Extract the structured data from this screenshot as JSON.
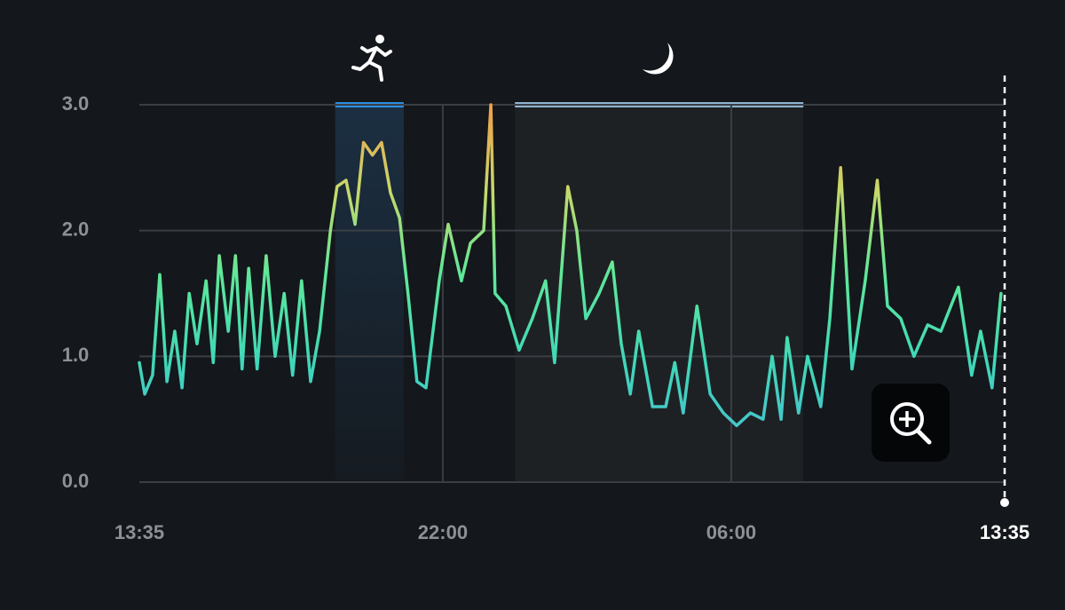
{
  "chart_data": {
    "type": "line",
    "x": [
      0,
      9,
      22,
      34,
      46,
      59,
      71,
      83,
      96,
      111,
      123,
      133,
      148,
      160,
      171,
      182,
      196,
      211,
      226,
      241,
      255,
      270,
      285,
      300,
      318,
      329,
      344,
      359,
      373,
      388,
      403,
      418,
      433,
      447,
      462,
      477,
      499,
      514,
      536,
      551,
      573,
      585,
      592,
      610,
      632,
      654,
      676,
      691,
      713,
      728,
      743,
      765,
      787,
      802,
      817,
      831,
      854,
      876,
      891,
      905,
      928,
      950,
      972,
      994,
      1017,
      1038,
      1053,
      1068,
      1078,
      1097,
      1112,
      1134,
      1149,
      1167,
      1186,
      1208,
      1228,
      1245,
      1267,
      1289,
      1312,
      1334,
      1363,
      1385,
      1400,
      1419,
      1434
    ],
    "values": [
      0.95,
      0.7,
      0.85,
      1.65,
      0.8,
      1.2,
      0.75,
      1.5,
      1.1,
      1.6,
      0.95,
      1.8,
      1.2,
      1.8,
      0.9,
      1.7,
      0.9,
      1.8,
      1.0,
      1.5,
      0.85,
      1.6,
      0.8,
      1.2,
      2.0,
      2.35,
      2.4,
      2.05,
      2.7,
      2.6,
      2.7,
      2.3,
      2.1,
      1.5,
      0.8,
      0.75,
      1.6,
      2.05,
      1.6,
      1.9,
      2.0,
      3.0,
      1.5,
      1.4,
      1.05,
      1.3,
      1.6,
      0.95,
      2.35,
      2.0,
      1.3,
      1.5,
      1.75,
      1.1,
      0.7,
      1.2,
      0.6,
      0.6,
      0.95,
      0.55,
      1.4,
      0.7,
      0.55,
      0.45,
      0.55,
      0.5,
      1.0,
      0.5,
      1.15,
      0.55,
      1.0,
      0.6,
      1.3,
      2.5,
      0.9,
      1.6,
      2.4,
      1.4,
      1.3,
      1.0,
      1.25,
      1.2,
      1.55,
      0.85,
      1.2,
      0.75,
      1.5
    ],
    "xlim": [
      0,
      1440
    ],
    "ylim": [
      0,
      3
    ],
    "xticks": [
      {
        "value": 0,
        "label": "13:35"
      },
      {
        "value": 505,
        "label": "22:00"
      },
      {
        "value": 985,
        "label": "06:00"
      },
      {
        "value": 1440,
        "label": "13:35"
      }
    ],
    "yticks": [
      {
        "value": 0,
        "label": "0.0"
      },
      {
        "value": 1,
        "label": "1.0"
      },
      {
        "value": 2,
        "label": "2.0"
      },
      {
        "value": 3,
        "label": "3.0"
      }
    ],
    "gradient_colors": [
      "#f0a04a",
      "#c8d86a",
      "#5ee89a",
      "#40d8b8",
      "#48c0d0"
    ],
    "bands": [
      {
        "start": 326,
        "end": 440,
        "color": "#2a8de0"
      },
      {
        "start": 625,
        "end": 1105,
        "color": "#8fb4d0"
      }
    ],
    "grid": true
  }
}
